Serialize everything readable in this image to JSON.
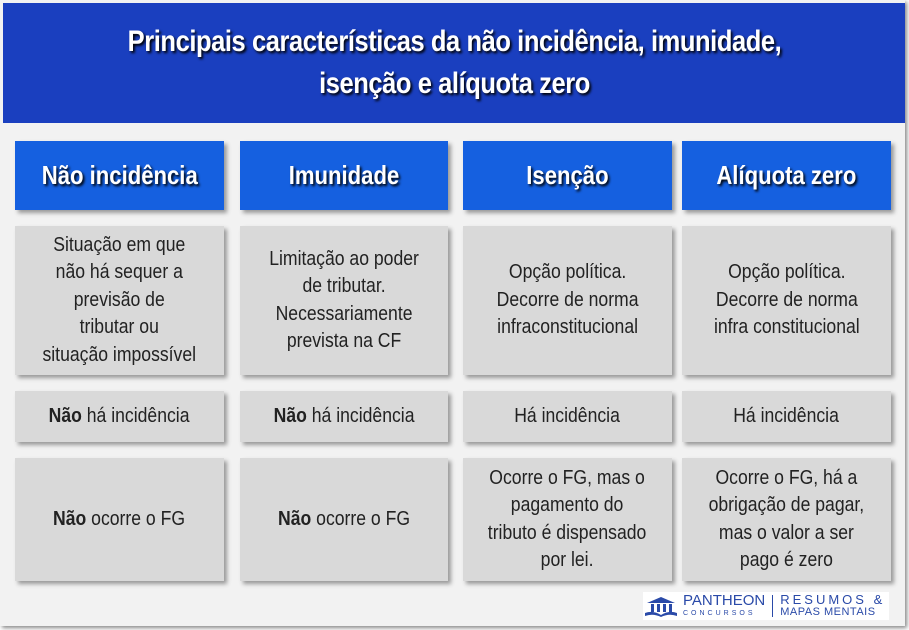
{
  "title": "Principais características da não incidência, imunidade,\nisenção e alíquota zero",
  "columns": [
    "Não incidência",
    "Imunidade",
    "Isenção",
    "Alíquota zero"
  ],
  "rows": [
    [
      {
        "b": "",
        "t": "Situação em que\nnão há sequer a\nprevisão de\ntributar ou\nsituação impossível"
      },
      {
        "b": "",
        "t": "Limitação ao poder\nde tributar.\nNecessariamente\nprevista na CF"
      },
      {
        "b": "",
        "t": "Opção política.\nDecorre de norma\ninfraconstitucional"
      },
      {
        "b": "",
        "t": "Opção política.\nDecorre de norma\ninfra constitucional"
      }
    ],
    [
      {
        "b": "Não",
        "t": " há incidência"
      },
      {
        "b": "Não",
        "t": " há incidência"
      },
      {
        "b": "",
        "t": "Há incidência"
      },
      {
        "b": "",
        "t": "Há incidência"
      }
    ],
    [
      {
        "b": "Não",
        "t": " ocorre o FG"
      },
      {
        "b": "Não",
        "t": " ocorre o FG"
      },
      {
        "b": "",
        "t": "Ocorre o FG, mas o\npagamento do\ntributo é dispensado\npor lei."
      },
      {
        "b": "",
        "t": "Ocorre o FG, há a\nobrigação de pagar,\nmas o valor a ser\npago é zero"
      }
    ]
  ],
  "logo": {
    "brand": "PANTHEON",
    "sub": "CONCURSOS",
    "tag1": "RESUMOS &",
    "tag2": "MAPAS MENTAIS"
  },
  "colors": {
    "title_bg": "#1a3fbf",
    "header_bg": "#1560e0",
    "cell_bg": "#d9d9d9",
    "background": "#f2f2f2"
  }
}
